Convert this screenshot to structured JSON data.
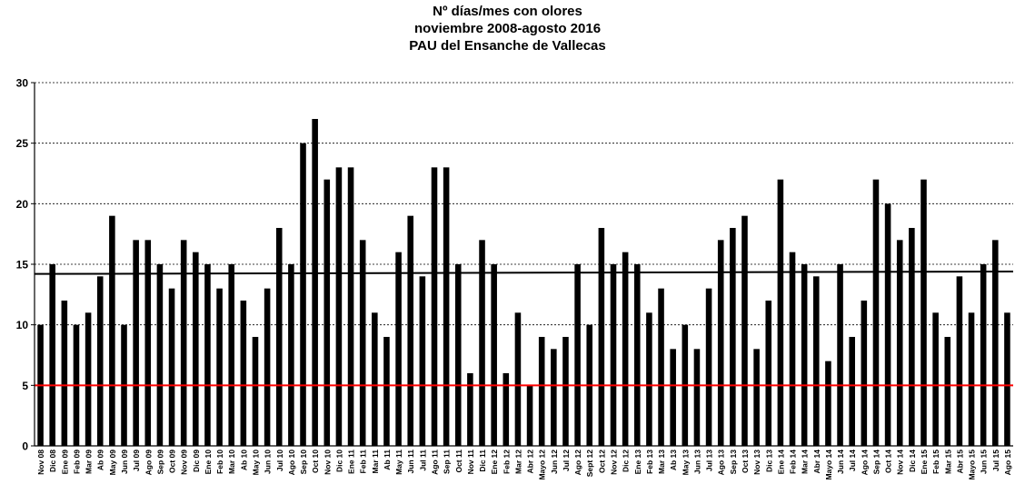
{
  "chart_data": {
    "type": "bar",
    "title": [
      "Nº días/mes con olores",
      "noviembre 2008-agosto 2016",
      "PAU del Ensanche de Vallecas"
    ],
    "xlabel": "",
    "ylabel": "",
    "ylim": [
      0,
      30
    ],
    "yticks": [
      0,
      5,
      10,
      15,
      20,
      25,
      30
    ],
    "grid": "horizontal-dashed",
    "legend": "none",
    "bar_color": "#000000",
    "categories": [
      "Nov 08",
      "Dic 08",
      "Ene 09",
      "Feb 09",
      "Mar 09",
      "Ab 09",
      "May 09",
      "Jun 09",
      "Jul 09",
      "Ago 09",
      "Sep 09",
      "Oct 09",
      "Nov 09",
      "Dic 09",
      "Ene 10",
      "Feb 10",
      "Mar 10",
      "Ab 10",
      "May 10",
      "Jun 10",
      "Jul 10",
      "Ago 10",
      "Sep 10",
      "Oct 10",
      "Nov 10",
      "Dic 10",
      "Ene 11",
      "Feb 11",
      "Mar 11",
      "Ab 11",
      "May 11",
      "Jun 11",
      "Jul 11",
      "Ago 11",
      "Sep 11",
      "Oct 11",
      "Nov 11",
      "Dic 11",
      "Ene 12",
      "Feb 12",
      "Mar 12",
      "Abr 12",
      "Mayo 12",
      "Jun 12",
      "Jul 12",
      "Ago 12",
      "Sept 12",
      "Oct 12",
      "Nov 12",
      "Dic 12",
      "Ene 13",
      "Feb 13",
      "Mar 13",
      "Ab 13",
      "May 13",
      "Jun 13",
      "Jul 13",
      "Ago 13",
      "Sep 13",
      "Oct 13",
      "Nov 13",
      "Dic 13",
      "Ene 14",
      "Feb 14",
      "Mar 14",
      "Abr 14",
      "Mayo 14",
      "Jun 14",
      "Jul 14",
      "Ago 14",
      "Sep 14",
      "Oct 14",
      "Nov 14",
      "Dic 14",
      "Ene 15",
      "Feb 15",
      "Mar 15",
      "Abr 15",
      "Mayo 15",
      "Jun 15",
      "Jul 15",
      "Ago 15"
    ],
    "values": [
      10,
      15,
      12,
      10,
      11,
      14,
      19,
      10,
      17,
      17,
      15,
      13,
      17,
      16,
      15,
      13,
      15,
      12,
      9,
      13,
      18,
      15,
      25,
      27,
      22,
      23,
      23,
      17,
      11,
      9,
      16,
      19,
      14,
      23,
      23,
      15,
      6,
      17,
      15,
      6,
      11,
      5,
      9,
      8,
      9,
      15,
      10,
      18,
      15,
      16,
      15,
      11,
      13,
      8,
      10,
      8,
      13,
      17,
      18,
      19,
      8,
      12,
      22,
      16,
      15,
      14,
      7,
      15,
      9,
      12,
      22,
      20,
      17,
      18,
      22,
      11,
      9,
      14,
      11,
      15,
      17,
      11
    ],
    "reference_lines": [
      {
        "color": "#000000",
        "y_start": 14.2,
        "y_end": 14.4
      },
      {
        "color": "#ff0000",
        "y_start": 5.0,
        "y_end": 5.0
      }
    ]
  }
}
